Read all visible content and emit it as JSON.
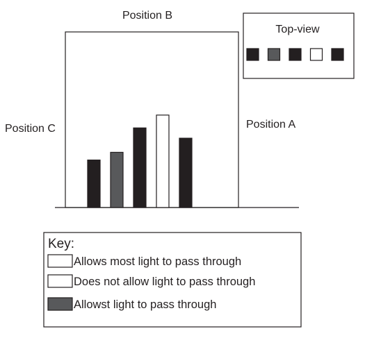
{
  "positions": {
    "a": "Position A",
    "b": "Position B",
    "c": "Position C"
  },
  "top_view": {
    "title": "Top-view",
    "blocks": [
      {
        "fill": "#231f20"
      },
      {
        "fill": "#58595b"
      },
      {
        "fill": "#231f20"
      },
      {
        "fill": "#ffffff"
      },
      {
        "fill": "#231f20"
      }
    ]
  },
  "bars": [
    {
      "height": 0.37,
      "fill": "#231f20"
    },
    {
      "height": 0.43,
      "fill": "#58595b"
    },
    {
      "height": 0.62,
      "fill": "#231f20"
    },
    {
      "height": 0.72,
      "fill": "#ffffff"
    },
    {
      "height": 0.54,
      "fill": "#231f20"
    }
  ],
  "key": {
    "title": "Key:",
    "items": [
      {
        "label": "Allows most light to pass through",
        "fill": "#ffffff"
      },
      {
        "label": "Does not allow light to pass through",
        "fill": "#ffffff"
      },
      {
        "label": "Allowst light to pass through",
        "fill": "#58595b"
      }
    ]
  },
  "colors": {
    "ink": "#231f20",
    "dark_gray": "#58595b",
    "white": "#ffffff"
  }
}
